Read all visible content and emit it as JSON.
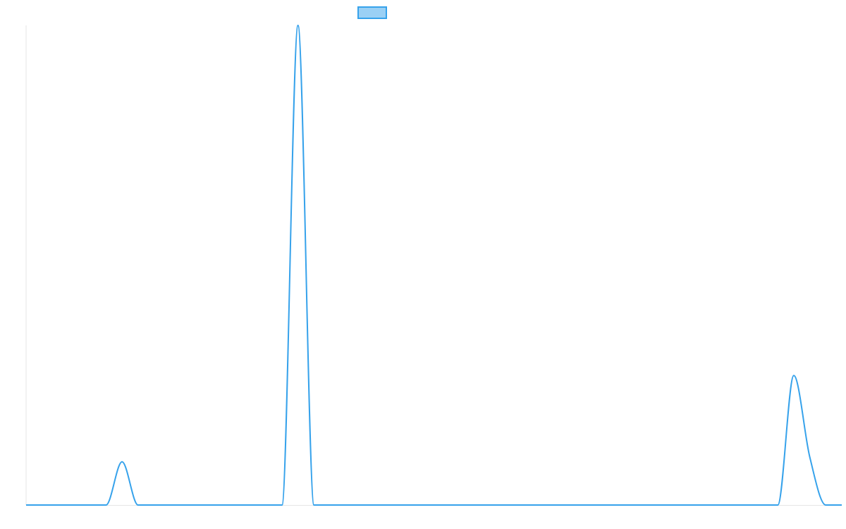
{
  "chart_data": {
    "type": "line",
    "categories": [
      null,
      null,
      null,
      null,
      null,
      null,
      null,
      null,
      null,
      null,
      null,
      null,
      null,
      null,
      null,
      null,
      null,
      null,
      null,
      null,
      null,
      null,
      null,
      null,
      null,
      null,
      null,
      null,
      null,
      null,
      null,
      null,
      null,
      null,
      null,
      null,
      null,
      null,
      null,
      null,
      null,
      null,
      null,
      null,
      null,
      null,
      null,
      null,
      null,
      null,
      null,
      null
    ],
    "series": [
      {
        "color": "#36a2eb",
        "values": [
          0,
          0,
          0,
          0,
          0,
          0,
          9,
          0,
          0,
          0,
          0,
          0,
          0,
          0,
          0,
          0,
          0,
          100,
          0,
          0,
          0,
          0,
          0,
          0,
          0,
          0,
          0,
          0,
          0,
          0,
          0,
          0,
          0,
          0,
          0,
          0,
          0,
          0,
          0,
          0,
          0,
          0,
          0,
          0,
          0,
          0,
          0,
          0,
          27,
          10,
          0,
          0
        ]
      }
    ],
    "ylim": [
      0,
      100
    ],
    "grid": false
  }
}
